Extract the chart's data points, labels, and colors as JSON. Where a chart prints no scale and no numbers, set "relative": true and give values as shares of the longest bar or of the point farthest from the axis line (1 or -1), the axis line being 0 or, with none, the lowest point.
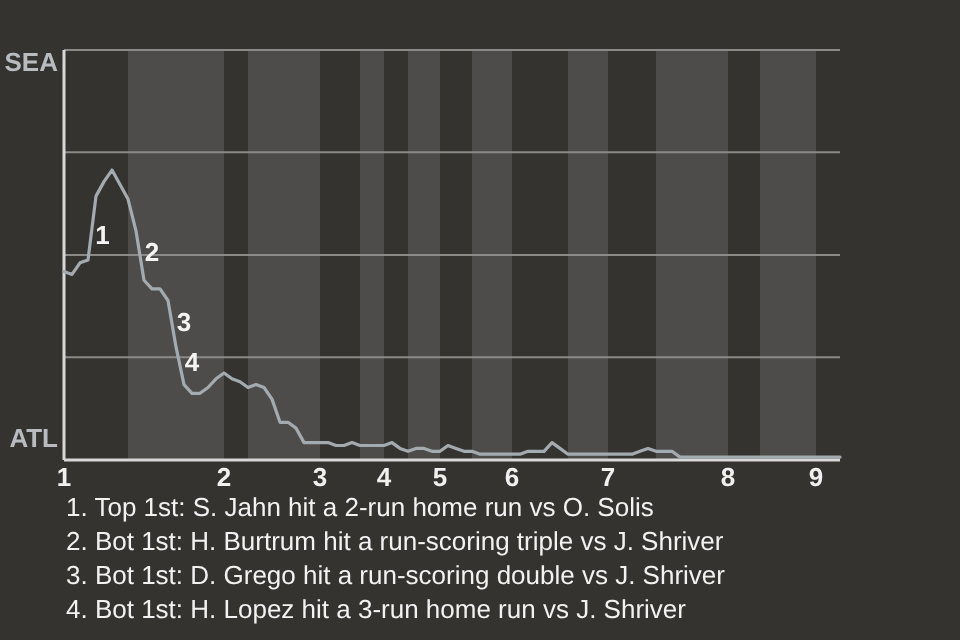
{
  "chart_data": {
    "type": "line",
    "relative": true,
    "categories": [
      "1",
      null,
      null,
      null,
      null,
      null,
      null,
      null,
      null,
      null,
      null,
      null,
      null,
      null,
      null,
      null,
      null,
      null,
      null,
      null,
      "2",
      null,
      null,
      null,
      null,
      null,
      null,
      null,
      null,
      null,
      null,
      null,
      "3",
      null,
      null,
      null,
      null,
      null,
      null,
      null,
      "4",
      null,
      null,
      null,
      null,
      null,
      null,
      "5",
      null,
      null,
      null,
      null,
      null,
      null,
      null,
      null,
      "6",
      null,
      null,
      null,
      null,
      null,
      null,
      null,
      null,
      null,
      null,
      null,
      "7",
      null,
      null,
      null,
      null,
      null,
      null,
      null,
      null,
      null,
      null,
      null,
      null,
      null,
      null,
      "8",
      null,
      null,
      null,
      null,
      null,
      null,
      null,
      null,
      null,
      null,
      "9",
      null,
      null,
      null
    ],
    "series": [
      {
        "color": "#a3abb0",
        "values": [
          0.65,
          0.64,
          0.68,
          0.69,
          0.91,
          0.96,
          1,
          0.95,
          0.9,
          0.79,
          0.62,
          0.59,
          0.59,
          0.55,
          0.39,
          0.26,
          0.23,
          0.23,
          0.25,
          0.28,
          0.3,
          0.28,
          0.27,
          0.25,
          0.26,
          0.25,
          0.21,
          0.13,
          0.13,
          0.11,
          0.06,
          0.06,
          0.06,
          0.06,
          0.05,
          0.05,
          0.06,
          0.05,
          0.05,
          0.05,
          0.05,
          0.06,
          0.04,
          0.03,
          0.04,
          0.04,
          0.03,
          0.03,
          0.05,
          0.04,
          0.03,
          0.03,
          0.02,
          0.02,
          0.02,
          0.02,
          0.02,
          0.02,
          0.03,
          0.03,
          0.03,
          0.06,
          0.04,
          0.02,
          0.02,
          0.02,
          0.02,
          0.02,
          0.02,
          0.02,
          0.02,
          0.02,
          0.03,
          0.04,
          0.03,
          0.03,
          0.03,
          0.01,
          0.01,
          0.01,
          0.01,
          0.01,
          0.01,
          0.01,
          0.01,
          0.01,
          0.01,
          0.01,
          0.01,
          0.01,
          0.01,
          0.01,
          0.01,
          0.01,
          0.01,
          0.01,
          0.01,
          0.01
        ]
      }
    ],
    "marker": "none",
    "line_style": "solid",
    "ref_lines": [
      {
        "axis": "y",
        "value": 0.354,
        "color": "#8a8a88"
      },
      {
        "axis": "y",
        "value": 0.707,
        "color": "#8a8a88"
      },
      {
        "axis": "y",
        "value": 1.061,
        "color": "#8a8a88"
      },
      {
        "axis": "y",
        "value": 1.414,
        "color": "#8a8a88"
      }
    ],
    "annotations": [
      "SEA",
      "ATL",
      "1",
      "2",
      "3",
      "4",
      "1. Top 1st: S. Jahn hit a 2-run home run vs O. Solis",
      "2. Bot 1st: H. Burtrum hit a run-scoring triple vs J. Shriver",
      "3. Bot 1st: D. Grego hit a run-scoring double vs J. Shriver",
      "4. Bot 1st: H. Lopez hit a 3-run home run vs J. Shriver"
    ]
  }
}
